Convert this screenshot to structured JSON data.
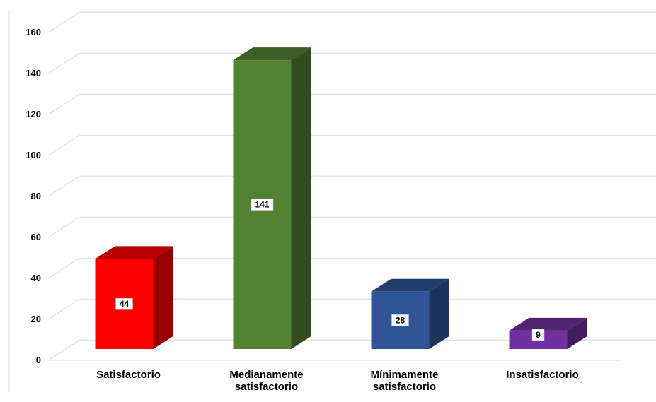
{
  "chart_data": {
    "type": "bar",
    "title": "",
    "xlabel": "",
    "ylabel": "",
    "categories": [
      [
        "Satisfactorio"
      ],
      [
        "Medianamente",
        "satisfactorio"
      ],
      [
        "Mínimamente",
        "satisfactorio"
      ],
      [
        "Insatisfactorio"
      ]
    ],
    "values": [
      44,
      141,
      28,
      9
    ],
    "colors": [
      "#ff0000",
      "#548235",
      "#2f5597",
      "#7030a0"
    ],
    "ylim": [
      0,
      160
    ],
    "yticks": [
      0,
      20,
      40,
      60,
      80,
      100,
      120,
      140,
      160
    ],
    "grid": true,
    "legend": "none",
    "data_labels": true
  }
}
